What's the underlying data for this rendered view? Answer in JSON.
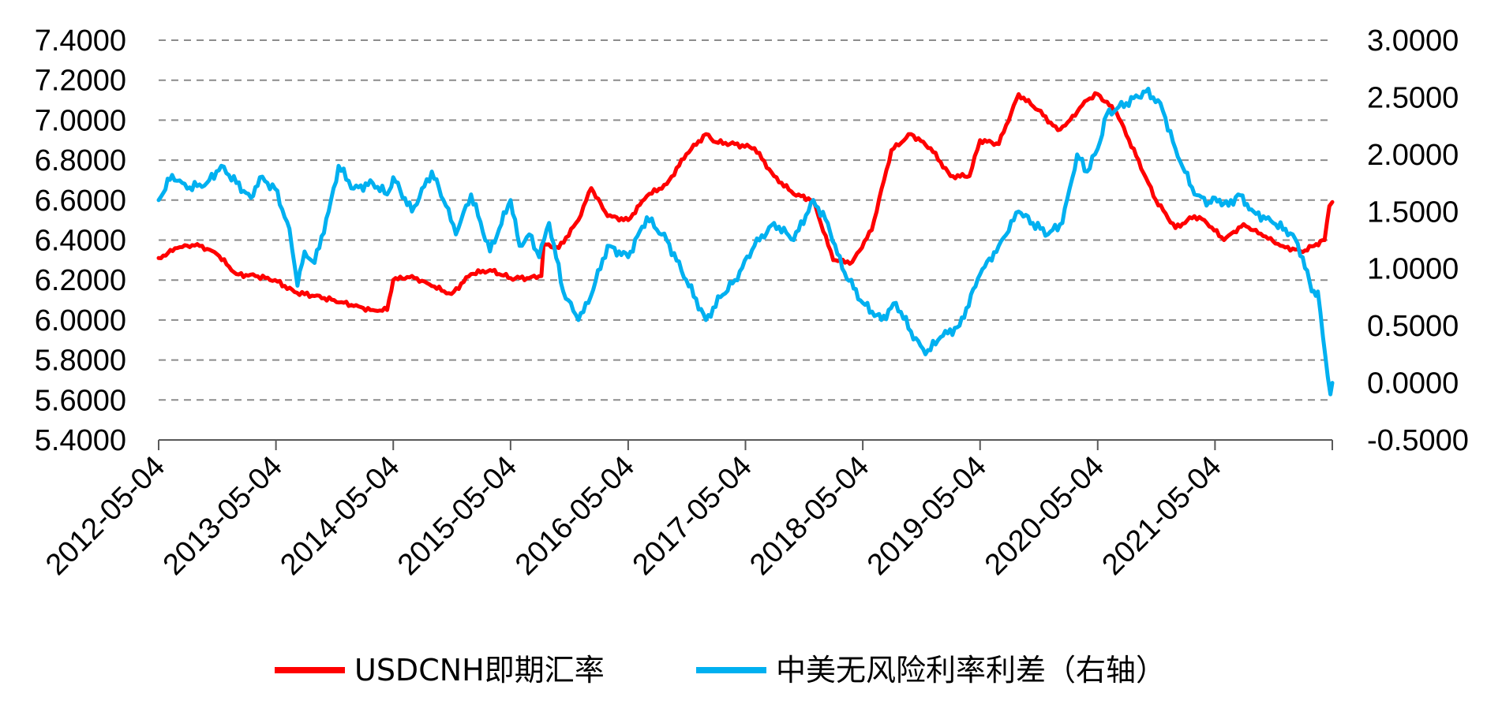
{
  "chart_data": {
    "type": "line",
    "title": "",
    "xlabel": "",
    "ylabel": "",
    "x_range": [
      "2012-05-04",
      "2022-05-04"
    ],
    "x_tick_labels": [
      "2012-05-04",
      "2013-05-04",
      "2014-05-04",
      "2015-05-04",
      "2016-05-04",
      "2017-05-04",
      "2018-05-04",
      "2019-05-04",
      "2020-05-04",
      "2021-05-04"
    ],
    "y_left": {
      "min": 5.4,
      "max": 7.4,
      "step": 0.2,
      "tick_labels": [
        "5.4000",
        "5.6000",
        "5.8000",
        "6.0000",
        "6.2000",
        "6.4000",
        "6.6000",
        "6.8000",
        "7.0000",
        "7.2000",
        "7.4000"
      ]
    },
    "y_right": {
      "min": -0.5,
      "max": 3.0,
      "step": 0.5,
      "tick_labels": [
        "-0.5000",
        "0.0000",
        "0.5000",
        "1.0000",
        "1.5000",
        "2.0000",
        "2.5000",
        "3.0000"
      ]
    },
    "grid": "horizontal-dashed",
    "legend_position": "bottom",
    "series": [
      {
        "name": "USDCNH即期汇率",
        "axis": "left",
        "color": "#ff0000",
        "points": [
          [
            "2012-05-04",
            6.31
          ],
          [
            "2012-07-01",
            6.36
          ],
          [
            "2012-09-01",
            6.38
          ],
          [
            "2012-11-01",
            6.33
          ],
          [
            "2013-01-01",
            6.23
          ],
          [
            "2013-03-01",
            6.22
          ],
          [
            "2013-05-01",
            6.2
          ],
          [
            "2013-07-01",
            6.14
          ],
          [
            "2013-09-01",
            6.12
          ],
          [
            "2013-11-01",
            6.1
          ],
          [
            "2014-01-01",
            6.07
          ],
          [
            "2014-03-01",
            6.05
          ],
          [
            "2014-04-15",
            6.05
          ],
          [
            "2014-05-04",
            6.2
          ],
          [
            "2014-07-01",
            6.22
          ],
          [
            "2014-09-01",
            6.17
          ],
          [
            "2014-11-01",
            6.13
          ],
          [
            "2015-01-01",
            6.23
          ],
          [
            "2015-03-01",
            6.25
          ],
          [
            "2015-05-04",
            6.21
          ],
          [
            "2015-07-01",
            6.21
          ],
          [
            "2015-08-08",
            6.22
          ],
          [
            "2015-08-15",
            6.38
          ],
          [
            "2015-10-01",
            6.36
          ],
          [
            "2015-12-01",
            6.5
          ],
          [
            "2016-01-10",
            6.66
          ],
          [
            "2016-03-01",
            6.52
          ],
          [
            "2016-05-04",
            6.5
          ],
          [
            "2016-07-01",
            6.62
          ],
          [
            "2016-09-01",
            6.68
          ],
          [
            "2016-11-01",
            6.83
          ],
          [
            "2017-01-01",
            6.93
          ],
          [
            "2017-02-01",
            6.89
          ],
          [
            "2017-04-01",
            6.88
          ],
          [
            "2017-06-01",
            6.86
          ],
          [
            "2017-08-01",
            6.72
          ],
          [
            "2017-10-01",
            6.63
          ],
          [
            "2017-12-01",
            6.6
          ],
          [
            "2018-02-01",
            6.3
          ],
          [
            "2018-04-01",
            6.29
          ],
          [
            "2018-06-01",
            6.45
          ],
          [
            "2018-08-01",
            6.85
          ],
          [
            "2018-10-01",
            6.93
          ],
          [
            "2018-12-01",
            6.86
          ],
          [
            "2019-02-01",
            6.72
          ],
          [
            "2019-04-01",
            6.72
          ],
          [
            "2019-05-04",
            6.9
          ],
          [
            "2019-07-01",
            6.88
          ],
          [
            "2019-09-01",
            7.13
          ],
          [
            "2019-11-01",
            7.05
          ],
          [
            "2020-01-01",
            6.95
          ],
          [
            "2020-02-01",
            6.99
          ],
          [
            "2020-04-01",
            7.1
          ],
          [
            "2020-05-04",
            7.13
          ],
          [
            "2020-07-01",
            7.04
          ],
          [
            "2020-09-01",
            6.82
          ],
          [
            "2020-11-01",
            6.6
          ],
          [
            "2021-01-01",
            6.46
          ],
          [
            "2021-03-01",
            6.52
          ],
          [
            "2021-04-01",
            6.5
          ],
          [
            "2021-06-01",
            6.4
          ],
          [
            "2021-08-01",
            6.48
          ],
          [
            "2021-10-01",
            6.42
          ],
          [
            "2021-12-01",
            6.37
          ],
          [
            "2022-02-01",
            6.34
          ],
          [
            "2022-03-15",
            6.38
          ],
          [
            "2022-04-10",
            6.4
          ],
          [
            "2022-04-25",
            6.57
          ],
          [
            "2022-05-04",
            6.59
          ]
        ]
      },
      {
        "name": "中美无风险利率利差（右轴）",
        "axis": "right",
        "color": "#00b0f0",
        "points": [
          [
            "2012-05-04",
            1.6
          ],
          [
            "2012-06-15",
            1.82
          ],
          [
            "2012-08-01",
            1.7
          ],
          [
            "2012-10-01",
            1.75
          ],
          [
            "2012-11-15",
            1.9
          ],
          [
            "2013-01-01",
            1.75
          ],
          [
            "2013-02-15",
            1.62
          ],
          [
            "2013-03-15",
            1.8
          ],
          [
            "2013-05-01",
            1.7
          ],
          [
            "2013-06-15",
            1.35
          ],
          [
            "2013-07-10",
            0.85
          ],
          [
            "2013-08-01",
            1.15
          ],
          [
            "2013-09-01",
            1.05
          ],
          [
            "2013-10-15",
            1.5
          ],
          [
            "2013-11-15",
            1.9
          ],
          [
            "2014-01-01",
            1.7
          ],
          [
            "2014-03-01",
            1.75
          ],
          [
            "2014-04-15",
            1.65
          ],
          [
            "2014-05-04",
            1.8
          ],
          [
            "2014-07-01",
            1.5
          ],
          [
            "2014-09-01",
            1.85
          ],
          [
            "2014-10-15",
            1.55
          ],
          [
            "2014-11-15",
            1.3
          ],
          [
            "2015-01-01",
            1.65
          ],
          [
            "2015-03-01",
            1.15
          ],
          [
            "2015-05-04",
            1.6
          ],
          [
            "2015-06-01",
            1.2
          ],
          [
            "2015-07-01",
            1.3
          ],
          [
            "2015-08-01",
            1.1
          ],
          [
            "2015-09-01",
            1.4
          ],
          [
            "2015-10-15",
            0.8
          ],
          [
            "2015-12-01",
            0.55
          ],
          [
            "2016-01-01",
            0.7
          ],
          [
            "2016-03-01",
            1.2
          ],
          [
            "2016-05-04",
            1.1
          ],
          [
            "2016-07-01",
            1.45
          ],
          [
            "2016-09-01",
            1.25
          ],
          [
            "2016-11-01",
            0.9
          ],
          [
            "2017-01-01",
            0.55
          ],
          [
            "2017-02-15",
            0.75
          ],
          [
            "2017-04-01",
            0.9
          ],
          [
            "2017-06-01",
            1.2
          ],
          [
            "2017-08-01",
            1.4
          ],
          [
            "2017-10-01",
            1.25
          ],
          [
            "2017-12-01",
            1.6
          ],
          [
            "2018-01-15",
            1.4
          ],
          [
            "2018-03-01",
            1.0
          ],
          [
            "2018-05-04",
            0.7
          ],
          [
            "2018-07-01",
            0.55
          ],
          [
            "2018-08-15",
            0.7
          ],
          [
            "2018-10-01",
            0.45
          ],
          [
            "2018-11-15",
            0.25
          ],
          [
            "2019-01-01",
            0.4
          ],
          [
            "2019-03-01",
            0.5
          ],
          [
            "2019-05-04",
            0.95
          ],
          [
            "2019-07-01",
            1.2
          ],
          [
            "2019-09-01",
            1.5
          ],
          [
            "2019-10-15",
            1.4
          ],
          [
            "2019-12-01",
            1.3
          ],
          [
            "2020-01-15",
            1.4
          ],
          [
            "2020-03-01",
            2.0
          ],
          [
            "2020-04-01",
            1.85
          ],
          [
            "2020-05-04",
            2.05
          ],
          [
            "2020-06-01",
            2.35
          ],
          [
            "2020-08-01",
            2.45
          ],
          [
            "2020-10-01",
            2.55
          ],
          [
            "2020-11-15",
            2.45
          ],
          [
            "2021-01-01",
            2.05
          ],
          [
            "2021-03-01",
            1.65
          ],
          [
            "2021-04-15",
            1.58
          ],
          [
            "2021-05-04",
            1.62
          ],
          [
            "2021-06-15",
            1.55
          ],
          [
            "2021-07-15",
            1.65
          ],
          [
            "2021-09-01",
            1.5
          ],
          [
            "2021-11-01",
            1.4
          ],
          [
            "2022-01-01",
            1.3
          ],
          [
            "2022-02-01",
            1.1
          ],
          [
            "2022-03-01",
            0.8
          ],
          [
            "2022-03-20",
            0.8
          ],
          [
            "2022-04-05",
            0.4
          ],
          [
            "2022-04-20",
            0.05
          ],
          [
            "2022-04-28",
            -0.1
          ],
          [
            "2022-05-04",
            0.0
          ]
        ]
      }
    ]
  }
}
